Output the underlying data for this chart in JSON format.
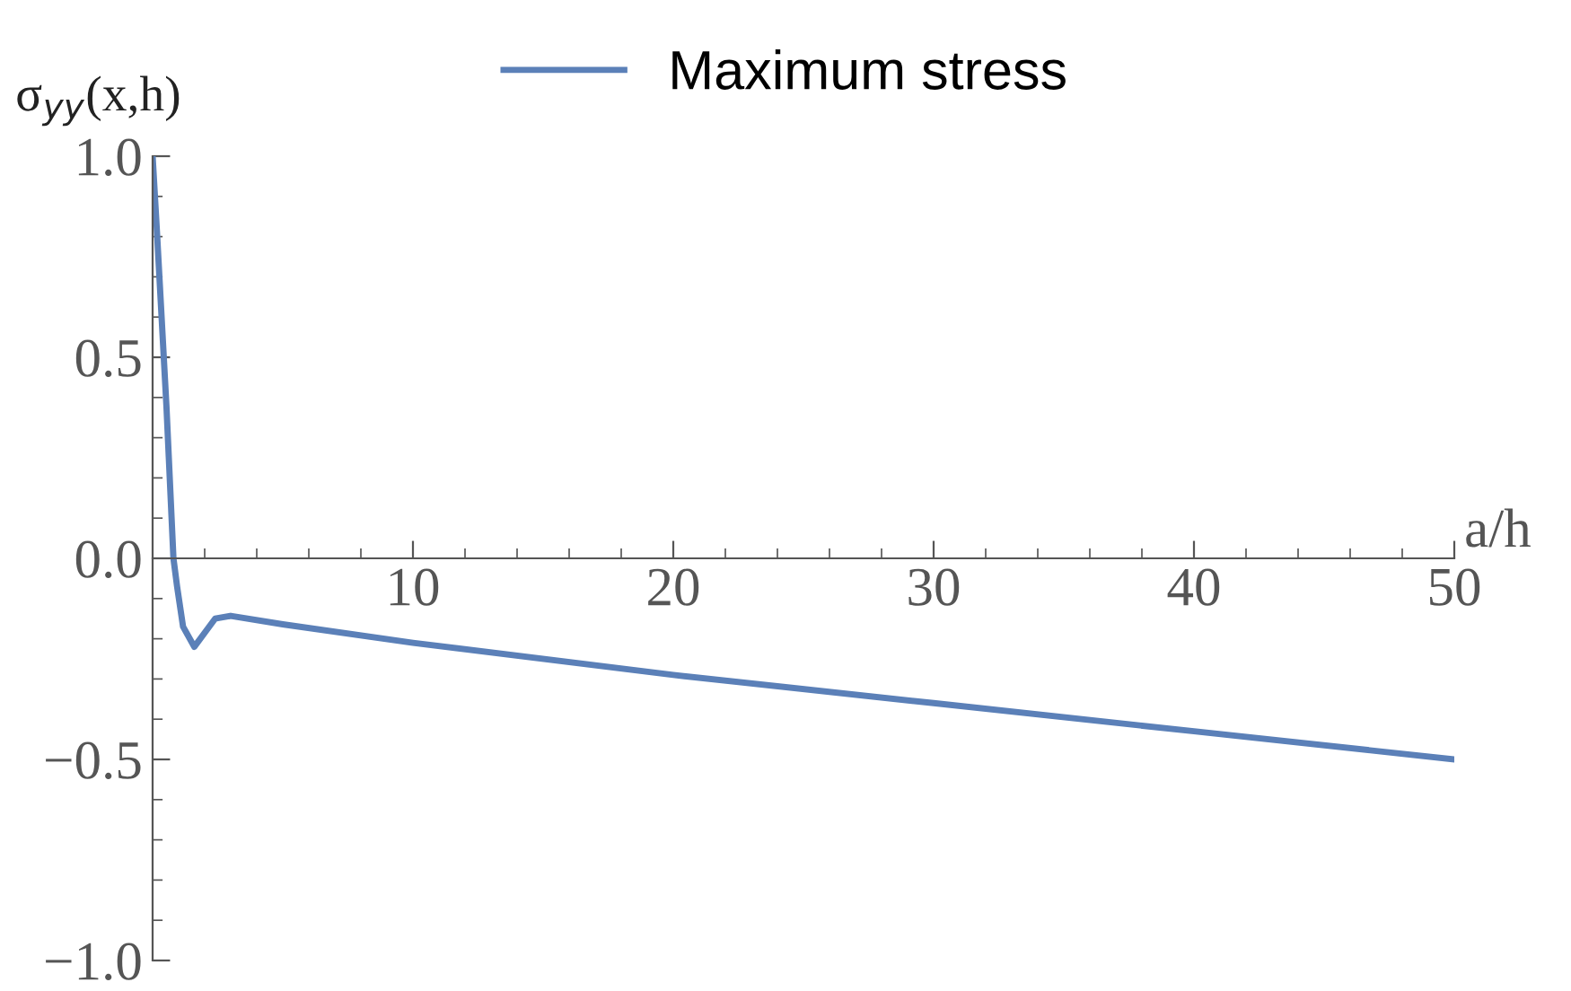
{
  "chart_data": {
    "type": "line",
    "xlabel": "a/h",
    "ylabel": "σ$_{yy}$(x,h)",
    "series": [
      {
        "name": "Maximum stress",
        "color": "#5b80b8",
        "x": [
          0,
          0.16,
          0.53,
          0.8,
          0.94,
          1.17,
          1.6,
          2.4,
          3,
          5,
          10,
          20,
          30,
          40,
          50
        ],
        "values": [
          1.0,
          0.82,
          0.38,
          0.0,
          -0.07,
          -0.17,
          -0.22,
          -0.15,
          -0.143,
          -0.164,
          -0.21,
          -0.29,
          -0.36,
          -0.43,
          -0.5
        ]
      }
    ],
    "xlim": [
      0,
      50
    ],
    "ylim": [
      -1.0,
      1.0
    ],
    "xticks": [
      10,
      20,
      30,
      40,
      50
    ],
    "yticks": [
      {
        "value": -1.0,
        "label": "−1.0"
      },
      {
        "value": -0.5,
        "label": "−0.5"
      },
      {
        "value": 0.0,
        "label": "0.0"
      },
      {
        "value": 0.5,
        "label": "0.5"
      },
      {
        "value": 1.0,
        "label": "1.0"
      }
    ],
    "legend": "top",
    "grid": false,
    "marker": "none",
    "line_style": "solid"
  }
}
